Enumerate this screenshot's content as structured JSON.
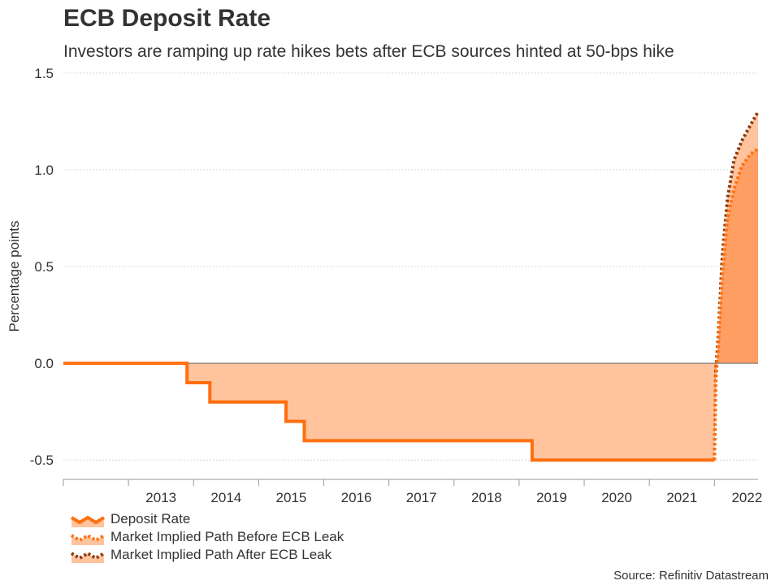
{
  "title": "ECB Deposit Rate",
  "subtitle": "Investors are ramping up rate hikes bets after ECB sources hinted at 50-bps hike",
  "source": "Source: Refinitiv Datastream",
  "colors": {
    "deposit_line": "#ff6f0f",
    "deposit_fill": "#ffc49e",
    "before_line": "#ff6f0f",
    "after_line": "#8b3a0e",
    "implied_fill": "#ff9e63",
    "zero_line": "#666666",
    "grid": "#d8d8d8",
    "text": "#333333"
  },
  "chart_data": {
    "type": "line",
    "title": "ECB Deposit Rate",
    "subtitle": "Investors are ramping up rate hikes bets after ECB sources hinted at 50-bps hike",
    "ylabel": "Percentage points",
    "xlabel": "",
    "xlim": [
      2012.0,
      2022.67
    ],
    "ylim": [
      -0.6,
      1.5
    ],
    "yticks": [
      -0.5,
      0.0,
      0.5,
      1.0,
      1.5
    ],
    "ytick_labels": [
      "-0.5",
      "0.0",
      "0.5",
      "1.0",
      "1.5"
    ],
    "xtick_labels": [
      "2013",
      "2014",
      "2015",
      "2016",
      "2017",
      "2018",
      "2019",
      "2020",
      "2021",
      "2022"
    ],
    "xtick_positions": [
      2013,
      2014,
      2015,
      2016,
      2017,
      2018,
      2019,
      2020,
      2021,
      2022
    ],
    "grid": true,
    "legend_position": "bottom-left",
    "series": [
      {
        "name": "Deposit Rate",
        "style": "step",
        "points": [
          [
            2012.0,
            0.0
          ],
          [
            2013.9,
            0.0
          ],
          [
            2013.9,
            -0.1
          ],
          [
            2014.25,
            -0.1
          ],
          [
            2014.25,
            -0.2
          ],
          [
            2015.42,
            -0.2
          ],
          [
            2015.42,
            -0.3
          ],
          [
            2015.7,
            -0.3
          ],
          [
            2015.7,
            -0.4
          ],
          [
            2019.2,
            -0.4
          ],
          [
            2019.2,
            -0.5
          ],
          [
            2022.0,
            -0.5
          ]
        ]
      },
      {
        "name": "Market Implied Path Before ECB Leak",
        "style": "dotted",
        "points": [
          [
            2022.0,
            -0.5
          ],
          [
            2022.02,
            -0.1
          ],
          [
            2022.06,
            0.1
          ],
          [
            2022.12,
            0.45
          ],
          [
            2022.2,
            0.75
          ],
          [
            2022.3,
            0.9
          ],
          [
            2022.42,
            1.02
          ],
          [
            2022.55,
            1.08
          ],
          [
            2022.67,
            1.11
          ]
        ]
      },
      {
        "name": "Market Implied Path After ECB Leak",
        "style": "dotted",
        "points": [
          [
            2022.0,
            -0.5
          ],
          [
            2022.02,
            -0.05
          ],
          [
            2022.06,
            0.15
          ],
          [
            2022.12,
            0.55
          ],
          [
            2022.2,
            0.85
          ],
          [
            2022.3,
            1.05
          ],
          [
            2022.42,
            1.15
          ],
          [
            2022.55,
            1.23
          ],
          [
            2022.67,
            1.3
          ]
        ]
      }
    ]
  }
}
